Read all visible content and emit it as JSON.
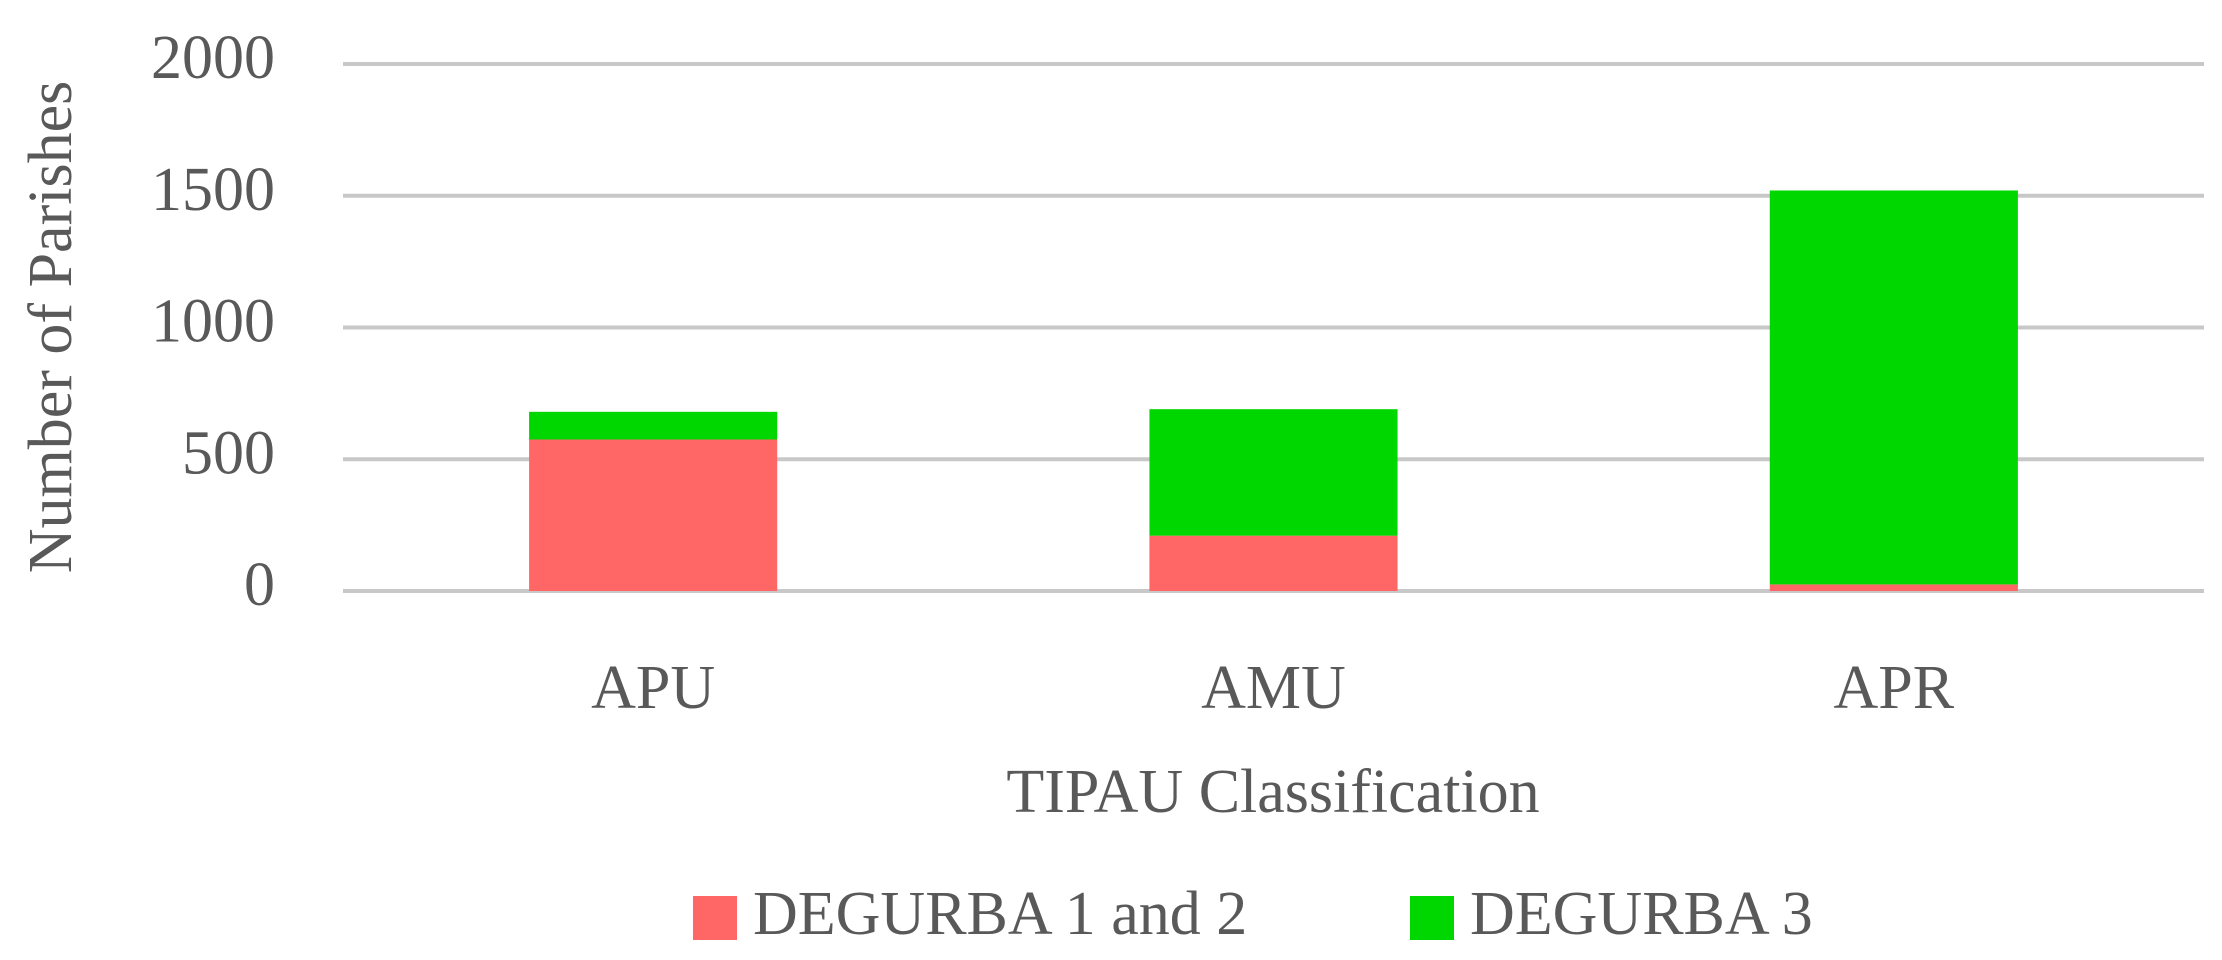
{
  "chart_data": {
    "type": "stacked_bar",
    "x_label": "TIPAU Classification",
    "y_label": "Number of Parishes",
    "categories": [
      "APU",
      "AMU",
      "APR"
    ],
    "series": [
      {
        "name": "DEGURBA 1 and 2",
        "color": "#ff6666",
        "values": [
          575,
          210,
          25
        ]
      },
      {
        "name": "DEGURBA 3",
        "color": "#00d600",
        "values": [
          105,
          480,
          1495
        ]
      }
    ],
    "ylim": [
      0,
      2000
    ],
    "yticks": [
      0,
      500,
      1000,
      1500,
      2000
    ],
    "grid": true,
    "legend": "bottom"
  }
}
